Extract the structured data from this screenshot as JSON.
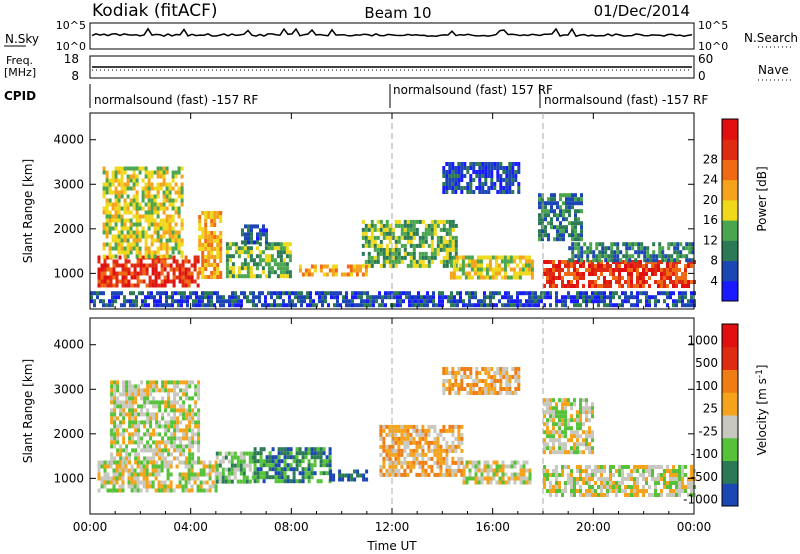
{
  "header": {
    "title": "Kodiak (fitACF)",
    "beam": "Beam 10",
    "date": "01/Dec/2014"
  },
  "status_panels": {
    "nsky_label": "N.Sky",
    "nsky_ticks": [
      "10^5",
      "10^0"
    ],
    "nsearch_label": "N.Search",
    "nsearch_ticks": [
      "10^5",
      "10^0"
    ],
    "freq_label": "Freq.",
    "freq_unit": "[MHz]",
    "freq_ticks": [
      "18",
      "8"
    ],
    "nave_label": "Nave",
    "nave_ticks": [
      "60",
      "0"
    ],
    "cpid_label": "CPID",
    "cpid_segments": [
      {
        "start": "00:00",
        "text": "normalsound (fast) -157 RF"
      },
      {
        "start": "12:00",
        "text": "normalsound (fast) 157 RF"
      },
      {
        "start": "18:00",
        "text": "normalsound (fast) -157 RF"
      }
    ]
  },
  "chart_data": [
    {
      "type": "heatmap",
      "name": "power",
      "ylabel": "Slant Range [km]",
      "ylim": [
        200,
        4600
      ],
      "yticks": [
        "1000",
        "2000",
        "3000",
        "4000"
      ],
      "xlim": [
        0,
        24
      ],
      "xticks": [
        "00:00",
        "04:00",
        "08:00",
        "12:00",
        "16:00",
        "20:00",
        "00:00"
      ],
      "colorbar_label": "Power [dB]",
      "colorbar_ticks": [
        "4",
        "8",
        "12",
        "16",
        "20",
        "24",
        "28"
      ],
      "colors": [
        "#1a1aff",
        "#1c46b4",
        "#2b7a55",
        "#4aa64e",
        "#f0d81a",
        "#f5a31a",
        "#f06a14",
        "#e02a12",
        "#e01010"
      ],
      "dashed_lines_at": [
        12,
        18
      ],
      "regions": [
        {
          "hours": [
            0.3,
            4.3
          ],
          "range_km": [
            700,
            1400
          ],
          "level": 7
        },
        {
          "hours": [
            0.5,
            3.6
          ],
          "range_km": [
            1400,
            3400
          ],
          "level": 4
        },
        {
          "hours": [
            4.3,
            5.2
          ],
          "range_km": [
            900,
            2400
          ],
          "level": 5
        },
        {
          "hours": [
            5.4,
            8.0
          ],
          "range_km": [
            900,
            1700
          ],
          "level": 3
        },
        {
          "hours": [
            6.0,
            7.0
          ],
          "range_km": [
            1700,
            2100
          ],
          "level": 1
        },
        {
          "hours": [
            8.3,
            11.0
          ],
          "range_km": [
            1000,
            1200
          ],
          "level": 5
        },
        {
          "hours": [
            10.8,
            14.5
          ],
          "range_km": [
            1200,
            2200
          ],
          "level": 3
        },
        {
          "hours": [
            14.3,
            17.6
          ],
          "range_km": [
            950,
            1400
          ],
          "level": 4
        },
        {
          "hours": [
            14.0,
            17.0
          ],
          "range_km": [
            2800,
            3500
          ],
          "level": 1
        },
        {
          "hours": [
            17.8,
            19.5
          ],
          "range_km": [
            1800,
            2800
          ],
          "level": 2
        },
        {
          "hours": [
            18.0,
            24.0
          ],
          "range_km": [
            700,
            1300
          ],
          "level": 7
        },
        {
          "hours": [
            19.0,
            24.0
          ],
          "range_km": [
            1300,
            1700
          ],
          "level": 2
        },
        {
          "hours": [
            0.0,
            24.0
          ],
          "range_km": [
            300,
            600
          ],
          "level": 1
        }
      ]
    },
    {
      "type": "heatmap",
      "name": "velocity",
      "ylabel": "Slant Range [km]",
      "ylim": [
        200,
        4600
      ],
      "yticks": [
        "1000",
        "2000",
        "3000",
        "4000"
      ],
      "xlim": [
        0,
        24
      ],
      "xticks": [
        "00:00",
        "04:00",
        "08:00",
        "12:00",
        "16:00",
        "20:00",
        "00:00"
      ],
      "xlabel": "Time UT",
      "colorbar_label": "Velocity [m s^-1]",
      "colorbar_ticks": [
        "1000",
        "500",
        "100",
        "25",
        "-25",
        "-100",
        "-500",
        "-1000"
      ],
      "colors": [
        "#1c46b4",
        "#2b7a55",
        "#55c23a",
        "#c8c8c0",
        "#f5a31a",
        "#f07d14",
        "#e02a12",
        "#e01010"
      ],
      "dashed_lines_at": [
        12,
        18
      ],
      "regions": [
        {
          "hours": [
            0.3,
            5.0
          ],
          "range_km": [
            700,
            1400
          ],
          "level": 3
        },
        {
          "hours": [
            0.8,
            4.3
          ],
          "range_km": [
            1400,
            3200
          ],
          "level": 3
        },
        {
          "hours": [
            5.0,
            6.5
          ],
          "range_km": [
            900,
            1600
          ],
          "level": 2
        },
        {
          "hours": [
            6.5,
            9.5
          ],
          "range_km": [
            900,
            1700
          ],
          "level": 1
        },
        {
          "hours": [
            9.5,
            11.0
          ],
          "range_km": [
            1000,
            1200
          ],
          "level": 0
        },
        {
          "hours": [
            11.5,
            14.8
          ],
          "range_km": [
            1100,
            2200
          ],
          "level": 4
        },
        {
          "hours": [
            14.0,
            17.0
          ],
          "range_km": [
            2900,
            3500
          ],
          "level": 4
        },
        {
          "hours": [
            14.8,
            17.5
          ],
          "range_km": [
            900,
            1400
          ],
          "level": 3
        },
        {
          "hours": [
            18.0,
            24.0
          ],
          "range_km": [
            600,
            1300
          ],
          "level": 3
        },
        {
          "hours": [
            18.0,
            20.0
          ],
          "range_km": [
            1600,
            2800
          ],
          "level": 3
        }
      ]
    }
  ]
}
